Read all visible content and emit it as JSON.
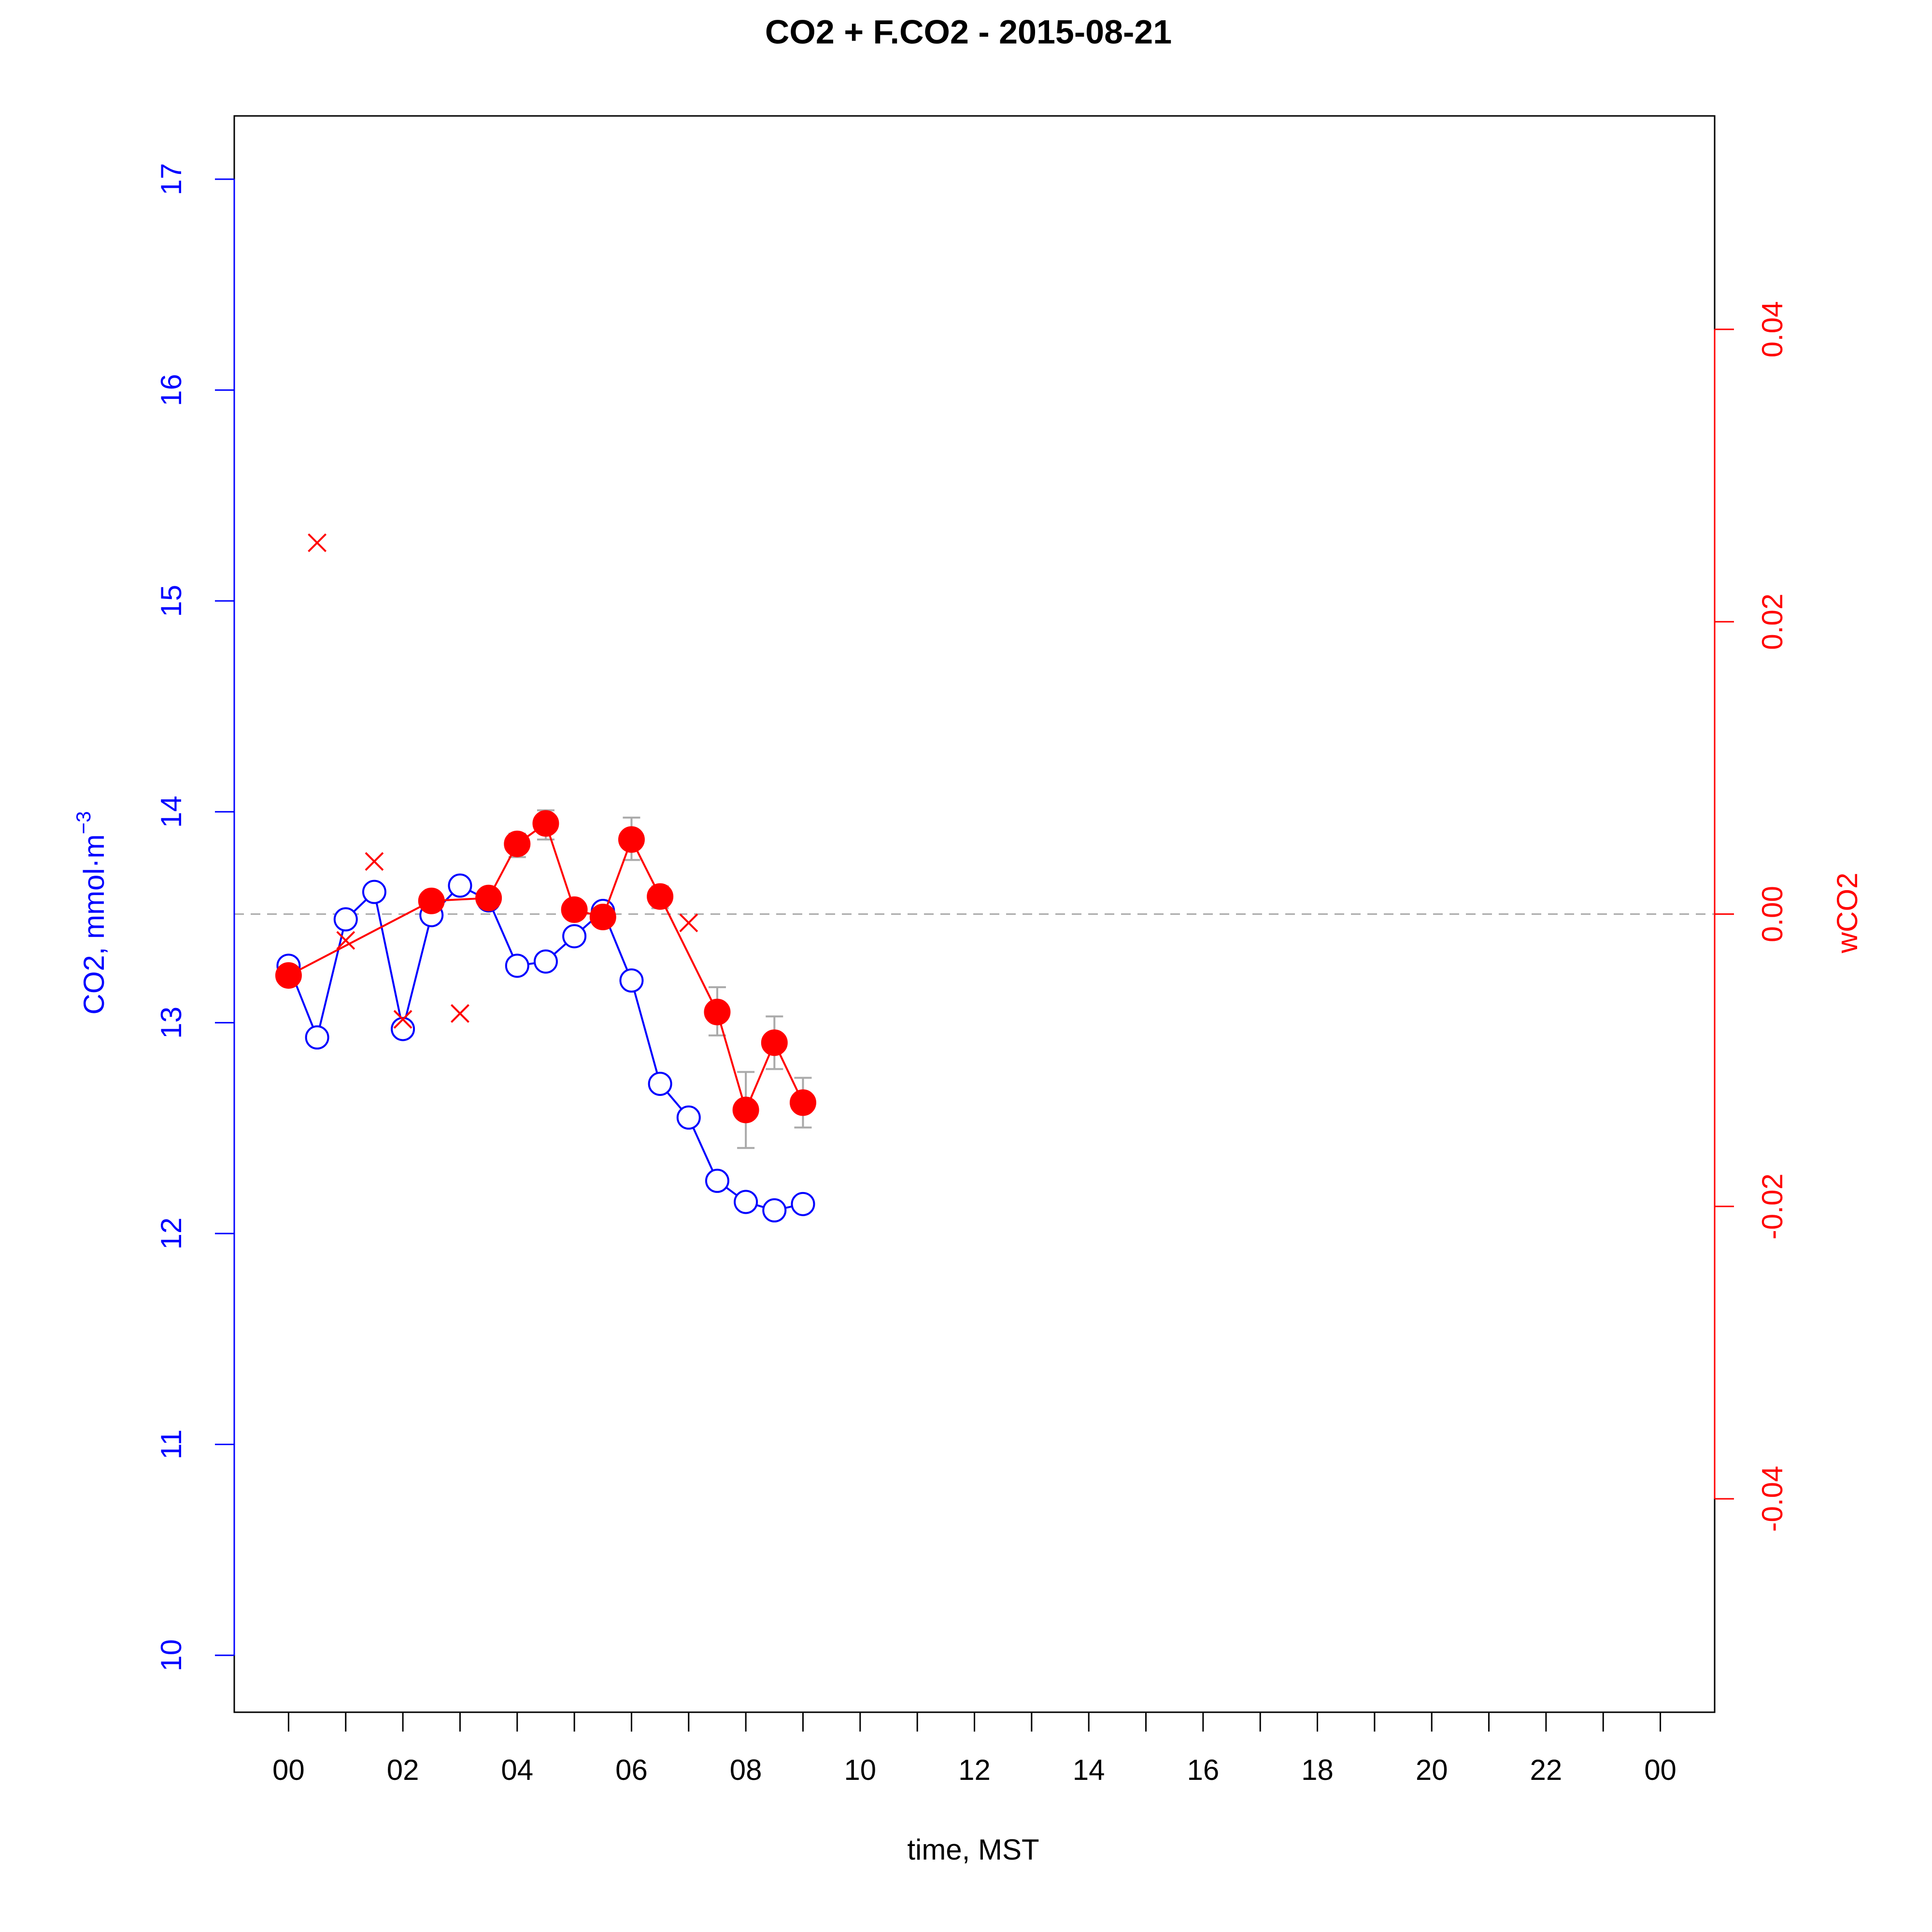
{
  "chart_data": {
    "type": "line",
    "title": "CO2 + F.CO2 -  2015-08-21",
    "xlabel": "time, MST",
    "ylabel_left": "CO2, mmol·m",
    "ylabel_left_superscript": "−3",
    "ylabel_right": "wCO2",
    "xlim": [
      -0.95,
      24.95
    ],
    "ylim_left": [
      9.73,
      17.3
    ],
    "ylim_right": [
      -0.0546,
      0.0546
    ],
    "x_ticks": [
      0,
      1,
      2,
      3,
      4,
      5,
      6,
      7,
      8,
      9,
      10,
      11,
      12,
      13,
      14,
      15,
      16,
      17,
      18,
      19,
      20,
      21,
      22,
      23,
      24
    ],
    "x_tick_labels": [
      {
        "x": 0,
        "label": "00"
      },
      {
        "x": 2,
        "label": "02"
      },
      {
        "x": 4,
        "label": "04"
      },
      {
        "x": 6,
        "label": "06"
      },
      {
        "x": 8,
        "label": "08"
      },
      {
        "x": 10,
        "label": "10"
      },
      {
        "x": 12,
        "label": "12"
      },
      {
        "x": 14,
        "label": "14"
      },
      {
        "x": 16,
        "label": "16"
      },
      {
        "x": 18,
        "label": "18"
      },
      {
        "x": 20,
        "label": "20"
      },
      {
        "x": 22,
        "label": "22"
      },
      {
        "x": 24,
        "label": "00"
      }
    ],
    "y_left_ticks": [
      10,
      11,
      12,
      13,
      14,
      15,
      16,
      17
    ],
    "y_left_tick_labels": [
      "10",
      "11",
      "12",
      "13",
      "14",
      "15",
      "16",
      "17"
    ],
    "y_right_ticks": [
      -0.04,
      -0.02,
      0.0,
      0.02,
      0.04
    ],
    "y_right_tick_labels": [
      "-0.04",
      "-0.02",
      "0.00",
      "0.02",
      "0.04"
    ],
    "reference_line": {
      "axis": "right",
      "y": 0.0,
      "style": "dashed"
    },
    "grid": false,
    "series": [
      {
        "axis": "left",
        "marker": "open-circle",
        "color": "#0000ff",
        "x": [
          0,
          0.5,
          1,
          1.5,
          2,
          2.5,
          3,
          3.5,
          4,
          4.5,
          5,
          5.5,
          6,
          6.5,
          7,
          7.5,
          8,
          8.5,
          9
        ],
        "y": [
          13.27,
          12.93,
          13.49,
          13.62,
          12.97,
          13.51,
          13.65,
          13.58,
          13.27,
          13.29,
          13.41,
          13.53,
          13.2,
          12.71,
          12.55,
          12.25,
          12.15,
          12.11,
          12.14
        ]
      },
      {
        "axis": "right",
        "marker": "filled-circle",
        "color": "#ff0000",
        "x": [
          0,
          2.5,
          3.5,
          4,
          4.5,
          5,
          5.5,
          6,
          6.5,
          7.5,
          8,
          8.5,
          9
        ],
        "y": [
          -0.0042,
          0.0009,
          0.0011,
          0.0048,
          0.0062,
          0.0003,
          -0.0002,
          0.0051,
          0.0012,
          -0.0067,
          -0.0134,
          -0.0088,
          -0.0129
        ],
        "error_bars": [
          {
            "x": 4,
            "low": 0.0039,
            "high": 0.0055
          },
          {
            "x": 4.5,
            "low": 0.0051,
            "high": 0.0071
          },
          {
            "x": 6,
            "low": 0.0037,
            "high": 0.0066
          },
          {
            "x": 6.5,
            "low": 0.0004,
            "high": 0.0019
          },
          {
            "x": 7.5,
            "low": -0.0083,
            "high": -0.005
          },
          {
            "x": 8,
            "low": -0.016,
            "high": -0.0108
          },
          {
            "x": 8.5,
            "low": -0.0106,
            "high": -0.007
          },
          {
            "x": 9,
            "low": -0.0146,
            "high": -0.0112
          }
        ]
      },
      {
        "axis": "right",
        "marker": "cross",
        "color": "#ff0000",
        "x": [
          0.5,
          1,
          1.5,
          2,
          3
        ],
        "y": [
          0.0254,
          -0.0018,
          0.0036,
          -0.0072,
          -0.0068
        ]
      },
      {
        "axis": "right",
        "marker": "cross",
        "color": "#ff0000",
        "x": [
          7
        ],
        "y": [
          -0.0006
        ]
      }
    ]
  },
  "colors": {
    "left_axis": "#0000ff",
    "right_axis": "#ff0000",
    "reference": "#aaaaaa",
    "error_bar": "#aaaaaa",
    "frame": "#000000"
  }
}
